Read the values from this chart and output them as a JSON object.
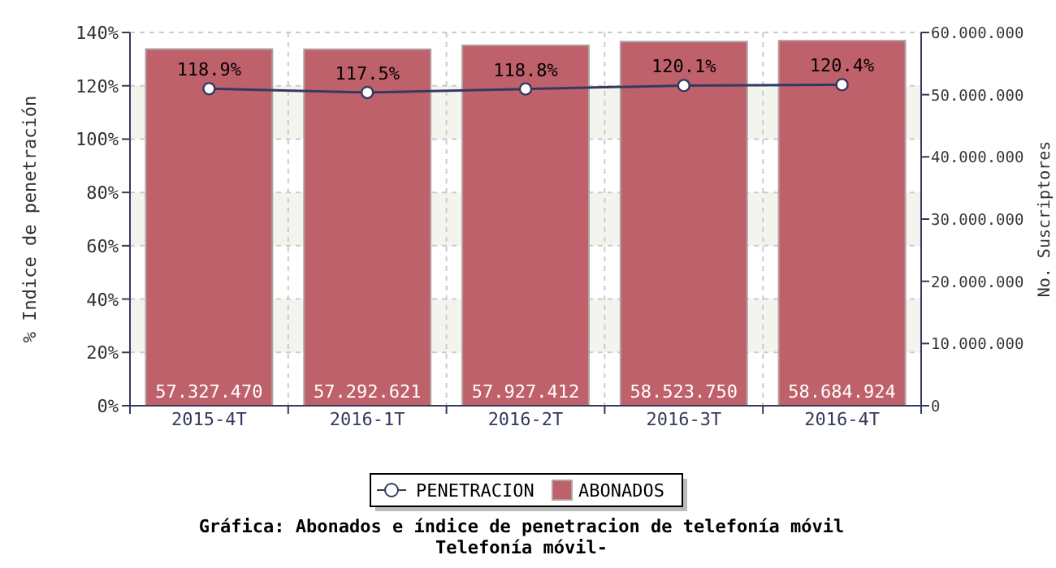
{
  "chart_data": {
    "type": "bar",
    "title": "Gráfica: Abonados e índice de penetracion de telefonía móvil",
    "subtitle": "Telefonía móvil-",
    "categories": [
      "2015-4T",
      "2016-1T",
      "2016-2T",
      "2016-3T",
      "2016-4T"
    ],
    "series": [
      {
        "name": "ABONADOS",
        "axis": "y2",
        "color": "#bf616a",
        "values": [
          57327470,
          57292621,
          57927412,
          58523750,
          58684924
        ],
        "value_labels": [
          "57.327.470",
          "57.292.621",
          "57.927.412",
          "58.523.750",
          "58.684.924"
        ]
      },
      {
        "name": "PENETRACION",
        "type": "line",
        "axis": "y",
        "color": "#333a5e",
        "marker": "circle",
        "values": [
          118.9,
          117.5,
          118.8,
          120.1,
          120.4
        ],
        "value_labels": [
          "118.9%",
          "117.5%",
          "118.8%",
          "120.1%",
          "120.4%"
        ]
      }
    ],
    "ylabel": "% Indice de penetración",
    "y2label": "No. Suscriptores",
    "ylim": [
      0,
      140
    ],
    "yticks": [
      {
        "value": 0,
        "label": "0%"
      },
      {
        "value": 20,
        "label": "20%"
      },
      {
        "value": 40,
        "label": "40%"
      },
      {
        "value": 60,
        "label": "60%"
      },
      {
        "value": 80,
        "label": "80%"
      },
      {
        "value": 100,
        "label": "100%"
      },
      {
        "value": 120,
        "label": "120%"
      },
      {
        "value": 140,
        "label": "140%"
      }
    ],
    "y2lim": [
      0,
      60000000
    ],
    "y2ticks": [
      {
        "value": 0,
        "label": "0"
      },
      {
        "value": 10000000,
        "label": "10.000.000"
      },
      {
        "value": 20000000,
        "label": "20.000.000"
      },
      {
        "value": 30000000,
        "label": "30.000.000"
      },
      {
        "value": 40000000,
        "label": "40.000.000"
      },
      {
        "value": 50000000,
        "label": "50.000.000"
      },
      {
        "value": 60000000,
        "label": "60.000.000"
      }
    ],
    "grid": true,
    "legend": "bottom"
  }
}
